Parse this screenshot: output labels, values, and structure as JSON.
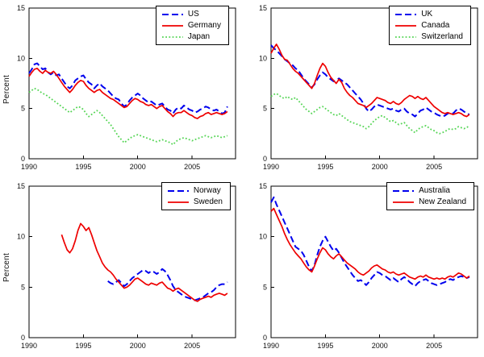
{
  "figure": {
    "background": "#ffffff"
  },
  "colors": {
    "blue": "#0000ee",
    "red": "#ee0000",
    "green": "#55d555",
    "axis": "#000000"
  },
  "chart_data": [
    {
      "type": "line",
      "title": "",
      "xlabel": "",
      "ylabel": "Percent",
      "xlim": [
        1990,
        2009
      ],
      "ylim": [
        0,
        15
      ],
      "xticks": [
        1990,
        1995,
        2000,
        2005
      ],
      "yticks": [
        0,
        5,
        10,
        15
      ],
      "grid": false,
      "legend_position": "top-right-inside",
      "series": [
        {
          "name": "US",
          "color": "#0000ee",
          "style": "dashed",
          "x_start": 1990,
          "x_step": 0.25,
          "values": [
            8.5,
            8.9,
            9.4,
            9.5,
            9.2,
            8.9,
            9.0,
            8.6,
            8.4,
            8.6,
            8.3,
            8.4,
            8.0,
            7.6,
            7.2,
            7.0,
            7.3,
            7.8,
            8.0,
            8.2,
            8.3,
            7.9,
            7.6,
            7.4,
            7.0,
            7.3,
            7.5,
            7.2,
            7.0,
            6.8,
            6.5,
            6.2,
            6.0,
            5.9,
            5.5,
            5.2,
            5.4,
            5.8,
            6.1,
            6.3,
            6.5,
            6.3,
            6.0,
            5.8,
            5.6,
            5.7,
            5.5,
            5.3,
            5.4,
            5.5,
            5.2,
            4.9,
            4.8,
            4.5,
            4.9,
            5.1,
            5.0,
            5.3,
            5.1,
            4.9,
            4.8,
            4.6,
            4.7,
            4.9,
            5.0,
            5.2,
            5.1,
            4.9,
            4.8,
            4.9,
            4.7,
            4.5,
            4.6,
            5.2
          ]
        },
        {
          "name": "Germany",
          "color": "#ee0000",
          "style": "solid",
          "x_start": 1990,
          "x_step": 0.25,
          "values": [
            8.2,
            8.6,
            8.9,
            9.0,
            8.7,
            8.5,
            8.8,
            8.6,
            8.5,
            8.7,
            8.4,
            8.0,
            7.6,
            7.2,
            6.9,
            6.6,
            6.9,
            7.3,
            7.6,
            7.8,
            7.7,
            7.3,
            7.0,
            6.8,
            6.6,
            6.8,
            6.9,
            6.6,
            6.4,
            6.2,
            6.0,
            5.9,
            5.7,
            5.5,
            5.3,
            5.1,
            5.2,
            5.5,
            5.8,
            6.0,
            5.9,
            5.7,
            5.6,
            5.4,
            5.3,
            5.4,
            5.2,
            5.0,
            5.2,
            5.3,
            5.0,
            4.7,
            4.5,
            4.2,
            4.5,
            4.6,
            4.6,
            4.8,
            4.6,
            4.4,
            4.3,
            4.1,
            4.0,
            4.2,
            4.3,
            4.5,
            4.6,
            4.4,
            4.5,
            4.6,
            4.5,
            4.4,
            4.5,
            4.7
          ]
        },
        {
          "name": "Japan",
          "color": "#55d555",
          "style": "dotted",
          "x_start": 1990,
          "x_step": 0.25,
          "values": [
            6.6,
            6.8,
            7.0,
            6.9,
            6.7,
            6.5,
            6.4,
            6.2,
            6.0,
            5.8,
            5.6,
            5.4,
            5.2,
            5.0,
            4.8,
            4.6,
            4.8,
            5.0,
            5.2,
            5.1,
            4.9,
            4.5,
            4.2,
            4.4,
            4.6,
            4.8,
            4.6,
            4.3,
            4.0,
            3.7,
            3.4,
            3.0,
            2.6,
            2.2,
            1.9,
            1.6,
            1.8,
            2.0,
            2.2,
            2.3,
            2.4,
            2.3,
            2.2,
            2.1,
            2.0,
            1.9,
            1.8,
            1.7,
            1.8,
            1.9,
            1.8,
            1.7,
            1.6,
            1.4,
            1.7,
            1.9,
            2.0,
            2.1,
            2.0,
            1.9,
            1.8,
            1.9,
            2.0,
            2.1,
            2.2,
            2.3,
            2.2,
            2.1,
            2.2,
            2.3,
            2.2,
            2.1,
            2.2,
            2.3
          ]
        }
      ]
    },
    {
      "type": "line",
      "title": "",
      "xlabel": "",
      "ylabel": "",
      "xlim": [
        1990,
        2009
      ],
      "ylim": [
        0,
        15
      ],
      "xticks": [
        1990,
        1995,
        2000,
        2005
      ],
      "yticks": [
        0,
        5,
        10,
        15
      ],
      "grid": false,
      "legend_position": "top-right-inside",
      "series": [
        {
          "name": "UK",
          "color": "#0000ee",
          "style": "dashed",
          "x_start": 1990,
          "x_step": 0.25,
          "values": [
            11.3,
            11.0,
            10.8,
            10.5,
            10.2,
            9.9,
            9.7,
            9.5,
            9.3,
            9.0,
            8.8,
            8.4,
            8.0,
            7.7,
            7.4,
            7.1,
            7.4,
            7.9,
            8.3,
            8.6,
            8.4,
            8.1,
            7.9,
            7.7,
            7.8,
            8.0,
            7.8,
            7.6,
            7.4,
            7.1,
            6.8,
            6.5,
            6.2,
            5.9,
            5.5,
            5.0,
            4.7,
            4.9,
            5.2,
            5.4,
            5.3,
            5.2,
            5.1,
            5.0,
            4.9,
            5.0,
            4.8,
            4.7,
            4.9,
            5.0,
            4.7,
            4.5,
            4.4,
            4.2,
            4.5,
            4.8,
            4.9,
            5.1,
            4.9,
            4.7,
            4.6,
            4.4,
            4.3,
            4.2,
            4.3,
            4.5,
            4.6,
            4.5,
            4.8,
            5.0,
            4.9,
            4.7,
            4.5,
            4.4
          ]
        },
        {
          "name": "Canada",
          "color": "#ee0000",
          "style": "solid",
          "x_start": 1990,
          "x_step": 0.25,
          "values": [
            10.5,
            11.0,
            11.4,
            10.9,
            10.3,
            9.9,
            9.8,
            9.4,
            9.0,
            8.7,
            8.5,
            8.2,
            7.9,
            7.6,
            7.3,
            7.0,
            7.5,
            8.3,
            9.0,
            9.5,
            9.2,
            8.6,
            8.1,
            7.8,
            7.5,
            7.9,
            7.6,
            7.0,
            6.6,
            6.3,
            6.1,
            5.8,
            5.5,
            5.4,
            5.3,
            5.1,
            5.3,
            5.5,
            5.8,
            6.1,
            6.0,
            5.9,
            5.8,
            5.6,
            5.5,
            5.7,
            5.5,
            5.4,
            5.6,
            5.9,
            6.1,
            6.3,
            6.2,
            6.0,
            6.2,
            6.0,
            5.9,
            6.1,
            5.8,
            5.5,
            5.2,
            5.0,
            4.8,
            4.6,
            4.5,
            4.6,
            4.5,
            4.4,
            4.5,
            4.6,
            4.5,
            4.3,
            4.2,
            4.4
          ]
        },
        {
          "name": "Switzerland",
          "color": "#55d555",
          "style": "dotted",
          "x_start": 1990,
          "x_step": 0.25,
          "values": [
            6.2,
            6.4,
            6.5,
            6.3,
            6.1,
            6.0,
            6.2,
            6.0,
            5.9,
            6.1,
            5.8,
            5.5,
            5.2,
            4.9,
            4.7,
            4.5,
            4.7,
            4.9,
            5.1,
            5.2,
            5.0,
            4.8,
            4.6,
            4.4,
            4.3,
            4.5,
            4.3,
            4.1,
            3.9,
            3.7,
            3.6,
            3.5,
            3.4,
            3.3,
            3.2,
            3.0,
            3.2,
            3.5,
            3.8,
            4.0,
            4.2,
            4.3,
            4.1,
            3.9,
            3.7,
            3.8,
            3.6,
            3.4,
            3.5,
            3.6,
            3.3,
            3.0,
            2.8,
            2.6,
            2.9,
            3.1,
            3.2,
            3.3,
            3.1,
            2.9,
            2.8,
            2.6,
            2.5,
            2.6,
            2.7,
            2.9,
            3.0,
            2.9,
            3.0,
            3.2,
            3.1,
            3.0,
            3.1,
            3.3
          ]
        }
      ]
    },
    {
      "type": "line",
      "title": "",
      "xlabel": "",
      "ylabel": "Percent",
      "xlim": [
        1990,
        2009
      ],
      "ylim": [
        0,
        15
      ],
      "xticks": [
        1990,
        1995,
        2000,
        2005
      ],
      "yticks": [
        0,
        5,
        10,
        15
      ],
      "grid": false,
      "legend_position": "top-right-inside",
      "series": [
        {
          "name": "Norway",
          "color": "#0000ee",
          "style": "dashed",
          "x_start": 1997.25,
          "x_step": 0.25,
          "values": [
            5.6,
            5.4,
            5.3,
            5.5,
            5.7,
            5.4,
            5.1,
            5.3,
            5.6,
            5.9,
            6.1,
            6.3,
            6.5,
            6.7,
            6.6,
            6.4,
            6.6,
            6.5,
            6.3,
            6.5,
            6.8,
            6.6,
            6.2,
            5.7,
            5.1,
            4.7,
            4.5,
            4.3,
            4.1,
            4.0,
            3.9,
            3.8,
            3.7,
            3.8,
            3.9,
            4.0,
            4.2,
            4.4,
            4.5,
            4.7,
            5.0,
            5.2,
            5.3,
            5.3,
            5.5
          ]
        },
        {
          "name": "Sweden",
          "color": "#ee0000",
          "style": "solid",
          "x_start": 1993,
          "x_step": 0.25,
          "values": [
            10.2,
            9.4,
            8.7,
            8.4,
            8.8,
            9.6,
            10.6,
            11.3,
            11.0,
            10.6,
            10.9,
            10.2,
            9.4,
            8.6,
            8.0,
            7.4,
            7.0,
            6.7,
            6.5,
            6.2,
            5.8,
            5.5,
            5.2,
            4.9,
            5.0,
            5.2,
            5.5,
            5.8,
            5.9,
            5.7,
            5.5,
            5.3,
            5.2,
            5.4,
            5.3,
            5.2,
            5.4,
            5.5,
            5.2,
            4.9,
            4.8,
            4.6,
            4.8,
            4.9,
            4.7,
            4.5,
            4.3,
            4.1,
            3.9,
            3.7,
            3.6,
            3.8,
            3.9,
            4.0,
            4.1,
            4.0,
            4.2,
            4.3,
            4.4,
            4.3,
            4.2,
            4.4
          ]
        }
      ]
    },
    {
      "type": "line",
      "title": "",
      "xlabel": "",
      "ylabel": "",
      "xlim": [
        1990,
        2009
      ],
      "ylim": [
        0,
        15
      ],
      "xticks": [
        1990,
        1995,
        2000,
        2005
      ],
      "yticks": [
        0,
        5,
        10,
        15
      ],
      "grid": false,
      "legend_position": "top-right-inside",
      "series": [
        {
          "name": "Australia",
          "color": "#0000ee",
          "style": "dashed",
          "x_start": 1990,
          "x_step": 0.25,
          "values": [
            13.4,
            13.9,
            13.2,
            12.6,
            12.0,
            11.4,
            10.8,
            10.2,
            9.6,
            9.0,
            8.8,
            8.6,
            8.2,
            7.6,
            7.0,
            6.6,
            7.2,
            8.2,
            9.0,
            9.6,
            10.0,
            9.5,
            9.0,
            8.6,
            8.8,
            8.4,
            7.9,
            7.4,
            7.0,
            6.6,
            6.2,
            5.9,
            5.6,
            5.7,
            5.5,
            5.2,
            5.5,
            5.9,
            6.2,
            6.5,
            6.4,
            6.2,
            6.1,
            5.9,
            5.7,
            5.9,
            5.7,
            5.5,
            5.8,
            6.0,
            5.8,
            5.5,
            5.3,
            5.1,
            5.4,
            5.6,
            5.7,
            5.8,
            5.6,
            5.4,
            5.3,
            5.2,
            5.3,
            5.4,
            5.5,
            5.7,
            5.8,
            5.7,
            5.9,
            6.0,
            6.1,
            6.0,
            5.9,
            6.0
          ]
        },
        {
          "name": "New Zealand",
          "color": "#ee0000",
          "style": "solid",
          "x_start": 1990,
          "x_step": 0.25,
          "values": [
            12.5,
            12.8,
            12.2,
            11.6,
            11.0,
            10.3,
            9.7,
            9.2,
            8.8,
            8.4,
            8.1,
            7.8,
            7.4,
            7.0,
            6.7,
            6.5,
            7.1,
            7.8,
            8.4,
            8.9,
            8.7,
            8.3,
            8.0,
            7.8,
            8.1,
            8.3,
            8.0,
            7.7,
            7.4,
            7.2,
            7.0,
            6.8,
            6.5,
            6.3,
            6.2,
            6.4,
            6.6,
            6.9,
            7.1,
            7.2,
            7.0,
            6.8,
            6.7,
            6.5,
            6.4,
            6.5,
            6.3,
            6.2,
            6.3,
            6.4,
            6.2,
            6.0,
            5.9,
            5.8,
            6.0,
            6.1,
            6.0,
            6.2,
            6.0,
            5.9,
            5.8,
            5.9,
            5.8,
            5.9,
            5.8,
            6.0,
            6.1,
            6.0,
            6.2,
            6.4,
            6.3,
            6.1,
            5.9,
            6.1
          ]
        }
      ]
    }
  ]
}
